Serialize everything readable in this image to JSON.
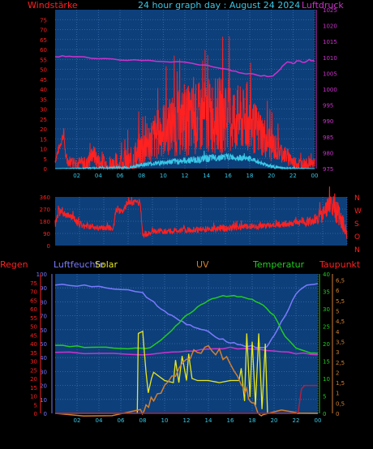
{
  "title": "24 hour graph day : August 24 2024",
  "headers": {
    "windstaerke": "Windstärke",
    "luftdruck": "Luftdruck",
    "regen": "Regen",
    "luftfeuchte": "Luftfeuchte",
    "solar": "Solar",
    "uv": "UV",
    "temperatur": "Temperatur",
    "taupunkt": "Taupunkt"
  },
  "colors": {
    "background": "#000000",
    "plot_bg": "#0d3f7a",
    "grid": "#3d6fb0",
    "wind": "#ff2020",
    "gust": "#ff2020",
    "avg_wind": "#38c8e8",
    "pressure": "#cc33cc",
    "direction": "#ff2020",
    "humidity": "#7a7aff",
    "temperature": "#22cc22",
    "solar": "#e8e820",
    "uv": "#d08030",
    "dewpoint": "#cc33cc",
    "rain": "#b02040"
  },
  "chart_data": [
    {
      "type": "line",
      "name": "wind-pressure",
      "x_ticks": [
        "02",
        "04",
        "06",
        "08",
        "10",
        "12",
        "14",
        "16",
        "18",
        "20",
        "22",
        "00"
      ],
      "left_axis": {
        "label": "Windstärke",
        "ticks": [
          "0",
          "5",
          "10",
          "15",
          "20",
          "25",
          "30",
          "35",
          "40",
          "45",
          "50",
          "55",
          "60",
          "65",
          "70",
          "75"
        ],
        "ylim": [
          0,
          80
        ]
      },
      "right_axis": {
        "label": "Luftdruck",
        "ticks": [
          "975",
          "980",
          "985",
          "990",
          "995",
          "1000",
          "1005",
          "1010",
          "1015",
          "1020",
          "1025"
        ],
        "ylim": [
          975,
          1025
        ]
      },
      "series": [
        {
          "key": "gust",
          "axis": "left",
          "style": "noise",
          "base": [
            [
              0,
              4
            ],
            [
              0.8,
              18
            ],
            [
              1,
              4
            ],
            [
              3,
              2
            ],
            [
              3.5,
              8
            ],
            [
              4,
              3
            ],
            [
              5,
              1
            ],
            [
              7,
              2
            ],
            [
              8,
              10
            ],
            [
              9,
              15
            ],
            [
              10,
              20
            ],
            [
              12,
              24
            ],
            [
              13,
              25
            ],
            [
              14,
              26
            ],
            [
              15,
              27
            ],
            [
              16,
              26
            ],
            [
              17,
              25
            ],
            [
              18,
              22
            ],
            [
              19,
              18
            ],
            [
              20,
              12
            ],
            [
              21,
              8
            ],
            [
              21.5,
              6
            ],
            [
              22,
              3
            ],
            [
              23,
              2
            ],
            [
              24,
              3
            ]
          ],
          "amp": [
            [
              0,
              2
            ],
            [
              3,
              4
            ],
            [
              8,
              10
            ],
            [
              12,
              18
            ],
            [
              16,
              20
            ],
            [
              19,
              12
            ],
            [
              21,
              5
            ],
            [
              24,
              2
            ]
          ]
        },
        {
          "key": "avg_wind",
          "axis": "left",
          "style": "noise",
          "base": [
            [
              0,
              0
            ],
            [
              7,
              0.5
            ],
            [
              8,
              2
            ],
            [
              10,
              3
            ],
            [
              12,
              4
            ],
            [
              14,
              5
            ],
            [
              16,
              6
            ],
            [
              18,
              5
            ],
            [
              19,
              3
            ],
            [
              20,
              1
            ],
            [
              21,
              0
            ],
            [
              24,
              0
            ]
          ],
          "amp": [
            [
              0,
              0
            ],
            [
              8,
              1
            ],
            [
              14,
              2
            ],
            [
              20,
              1
            ],
            [
              24,
              0
            ]
          ]
        },
        {
          "key": "pressure",
          "axis": "right",
          "style": "smooth",
          "points": [
            [
              0,
              1010.2
            ],
            [
              1,
              1010.4
            ],
            [
              2,
              1010.1
            ],
            [
              4,
              1009.7
            ],
            [
              6,
              1009.4
            ],
            [
              8,
              1009.0
            ],
            [
              10,
              1008.8
            ],
            [
              12,
              1008.5
            ],
            [
              14,
              1007.4
            ],
            [
              16,
              1006.2
            ],
            [
              17,
              1005.4
            ],
            [
              18,
              1004.7
            ],
            [
              19,
              1004.2
            ],
            [
              20,
              1003.9
            ],
            [
              20.5,
              1005.0
            ],
            [
              21,
              1007.0
            ],
            [
              21.5,
              1008.8
            ],
            [
              22,
              1008.2
            ],
            [
              22.5,
              1009.0
            ],
            [
              23,
              1008.6
            ],
            [
              23.5,
              1009.2
            ],
            [
              24,
              1009.0
            ]
          ]
        }
      ]
    },
    {
      "type": "line",
      "name": "wind-direction",
      "x_ticks": [],
      "left_axis": {
        "ticks": [
          "0",
          "90",
          "180",
          "270",
          "360"
        ],
        "ylim": [
          0,
          360
        ]
      },
      "right_axis": {
        "label": "N W S O N",
        "ticks": [
          "N",
          "W",
          "S",
          "O",
          "N"
        ]
      },
      "series": [
        {
          "key": "direction",
          "axis": "left",
          "style": "noise",
          "base": [
            [
              0,
              160
            ],
            [
              0.3,
              250
            ],
            [
              1,
              220
            ],
            [
              1.5,
              210
            ],
            [
              2,
              150
            ],
            [
              4,
              130
            ],
            [
              4.8,
              130
            ],
            [
              5,
              270
            ],
            [
              5.5,
              250
            ],
            [
              6,
              320
            ],
            [
              7,
              320
            ],
            [
              7.2,
              80
            ],
            [
              8,
              100
            ],
            [
              10,
              110
            ],
            [
              12,
              120
            ],
            [
              14,
              130
            ],
            [
              16,
              140
            ],
            [
              18,
              150
            ],
            [
              19,
              160
            ],
            [
              20,
              175
            ],
            [
              21,
              180
            ],
            [
              22,
              220
            ],
            [
              22.5,
              310
            ],
            [
              23,
              270
            ],
            [
              23.5,
              200
            ],
            [
              24,
              100
            ]
          ],
          "amp": [
            [
              0,
              30
            ],
            [
              2,
              25
            ],
            [
              4,
              20
            ],
            [
              7,
              25
            ],
            [
              10,
              20
            ],
            [
              14,
              25
            ],
            [
              18,
              20
            ],
            [
              21,
              40
            ],
            [
              23,
              90
            ],
            [
              24,
              60
            ]
          ]
        }
      ]
    },
    {
      "type": "line",
      "name": "solar-uv-temp",
      "x_ticks": [
        "02",
        "04",
        "06",
        "08",
        "10",
        "12",
        "14",
        "16",
        "18",
        "20",
        "22",
        "00"
      ],
      "left_axis_rain": {
        "label": "Regen",
        "ticks": [
          "0",
          "5",
          "10",
          "15",
          "20",
          "25",
          "30",
          "35",
          "40",
          "45",
          "50",
          "55",
          "60",
          "65",
          "70",
          "75"
        ],
        "ylim": [
          0,
          80
        ]
      },
      "left_axis_humidity": {
        "label": "Luftfeuchte",
        "ticks": [
          "0",
          "10",
          "20",
          "30",
          "40",
          "50",
          "60",
          "70",
          "80",
          "90",
          "100"
        ],
        "ylim": [
          0,
          100
        ]
      },
      "right_axis_temp": {
        "label": "Temperatur",
        "ticks": [
          "0",
          "5",
          "10",
          "15",
          "20",
          "25",
          "30",
          "35",
          "40"
        ],
        "ylim": [
          0,
          40
        ]
      },
      "right_axis_uv": {
        "label": "Taupunkt",
        "ticks": [
          "0",
          "0,5",
          "1",
          "1,5",
          "2",
          "2,5",
          "3",
          "3,5",
          "4",
          "4,5",
          "5",
          "5,5",
          "6",
          "6,5"
        ],
        "ylim": [
          0,
          6.8
        ]
      },
      "series": [
        {
          "key": "humidity",
          "axis": "humidity",
          "style": "smooth",
          "points": [
            [
              0,
              92
            ],
            [
              2,
              92
            ],
            [
              4,
              91
            ],
            [
              6,
              89
            ],
            [
              8,
              86
            ],
            [
              9,
              80
            ],
            [
              10,
              73
            ],
            [
              11,
              68
            ],
            [
              12,
              64
            ],
            [
              13,
              61
            ],
            [
              14,
              58
            ],
            [
              15,
              54
            ],
            [
              16,
              51
            ],
            [
              17,
              49
            ],
            [
              18,
              48
            ],
            [
              19,
              47
            ],
            [
              19.5,
              49
            ],
            [
              20,
              56
            ],
            [
              21,
              70
            ],
            [
              22,
              86
            ],
            [
              23,
              92
            ],
            [
              24,
              93
            ]
          ]
        },
        {
          "key": "temperature",
          "axis": "temp",
          "style": "smooth",
          "points": [
            [
              0,
              19.5
            ],
            [
              2,
              19.2
            ],
            [
              4,
              18.9
            ],
            [
              6,
              18.6
            ],
            [
              8,
              18.5
            ],
            [
              9,
              19.3
            ],
            [
              10,
              22
            ],
            [
              11,
              25
            ],
            [
              12,
              28
            ],
            [
              13,
              30.5
            ],
            [
              14,
              32.5
            ],
            [
              15,
              33.5
            ],
            [
              16,
              33.8
            ],
            [
              17,
              33.6
            ],
            [
              18,
              32.5
            ],
            [
              19,
              31
            ],
            [
              20,
              28
            ],
            [
              21,
              22
            ],
            [
              22,
              18.5
            ],
            [
              23,
              17.5
            ],
            [
              24,
              17
            ]
          ]
        },
        {
          "key": "dewpoint",
          "axis": "temp",
          "style": "smooth",
          "points": [
            [
              0,
              17.5
            ],
            [
              4,
              17.2
            ],
            [
              8,
              17.0
            ],
            [
              10,
              17.2
            ],
            [
              12,
              17.8
            ],
            [
              14,
              18.5
            ],
            [
              16,
              18.8
            ],
            [
              18,
              18.5
            ],
            [
              20,
              18.0
            ],
            [
              22,
              17.3
            ],
            [
              24,
              17.0
            ]
          ]
        },
        {
          "key": "solar",
          "axis": "uv",
          "style": "spiky",
          "points": [
            [
              0,
              0
            ],
            [
              7.5,
              0
            ],
            [
              7.6,
              3.9
            ],
            [
              8,
              4.0
            ],
            [
              8.3,
              2.0
            ],
            [
              8.5,
              1.0
            ],
            [
              8.8,
              1.7
            ],
            [
              9,
              2.0
            ],
            [
              9.5,
              1.8
            ],
            [
              10,
              1.6
            ],
            [
              10.8,
              1.5
            ],
            [
              11,
              2.6
            ],
            [
              11.3,
              1.5
            ],
            [
              11.6,
              2.8
            ],
            [
              12,
              1.6
            ],
            [
              12.2,
              2.9
            ],
            [
              12.5,
              1.7
            ],
            [
              13,
              1.6
            ],
            [
              14,
              1.6
            ],
            [
              15,
              1.5
            ],
            [
              16,
              1.6
            ],
            [
              16.8,
              1.6
            ],
            [
              17,
              2.2
            ],
            [
              17.3,
              0.6
            ],
            [
              17.5,
              3.9
            ],
            [
              17.8,
              0.8
            ],
            [
              18,
              3.5
            ],
            [
              18.3,
              0.4
            ],
            [
              18.6,
              3.9
            ],
            [
              18.9,
              0.2
            ],
            [
              19.2,
              3.4
            ],
            [
              19.4,
              0
            ],
            [
              24,
              0
            ]
          ]
        },
        {
          "key": "uv",
          "axis": "uv",
          "style": "smooth",
          "points": [
            [
              0,
              0
            ],
            [
              7.8,
              0
            ],
            [
              8.3,
              0.3
            ],
            [
              9,
              0.8
            ],
            [
              10,
              1.4
            ],
            [
              11,
              2.0
            ],
            [
              12,
              2.6
            ],
            [
              13,
              3.1
            ],
            [
              14,
              3.3
            ],
            [
              15,
              3.0
            ],
            [
              16,
              2.4
            ],
            [
              17,
              1.6
            ],
            [
              17.5,
              1.0
            ],
            [
              18,
              0.5
            ],
            [
              18.5,
              0.2
            ],
            [
              19,
              0
            ],
            [
              24,
              0
            ]
          ]
        },
        {
          "key": "rain",
          "axis": "rain",
          "style": "smooth",
          "points": [
            [
              0,
              0
            ],
            [
              22,
              0
            ],
            [
              22.2,
              0.5
            ],
            [
              22.5,
              14
            ],
            [
              22.8,
              16
            ],
            [
              23.3,
              16
            ],
            [
              24,
              16
            ]
          ]
        }
      ]
    }
  ]
}
